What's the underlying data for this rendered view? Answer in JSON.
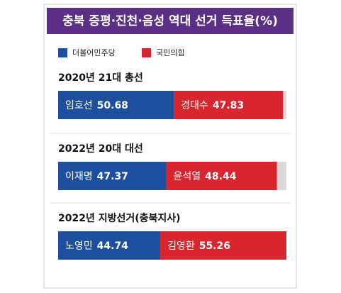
{
  "chart_data": {
    "type": "stacked-bar-horizontal",
    "title": "충북 증평·진천·음성 역대 선거 득표율(%)",
    "categories": [
      "2020년 21대 총선",
      "2022년 20대 대선",
      "2022년 지방선거(충북지사)"
    ],
    "series": [
      {
        "name": "더불어민주당",
        "color": "#1d4f9e",
        "candidates": [
          "임호선",
          "이재명",
          "노영민"
        ],
        "values": [
          50.68,
          47.37,
          44.74
        ]
      },
      {
        "name": "국민의힘",
        "color": "#d9252f",
        "candidates": [
          "경대수",
          "윤석열",
          "김영환"
        ],
        "values": [
          47.83,
          48.44,
          55.26
        ]
      }
    ],
    "xlim": [
      0,
      100
    ],
    "remainder_color": "#d9d9d9"
  }
}
